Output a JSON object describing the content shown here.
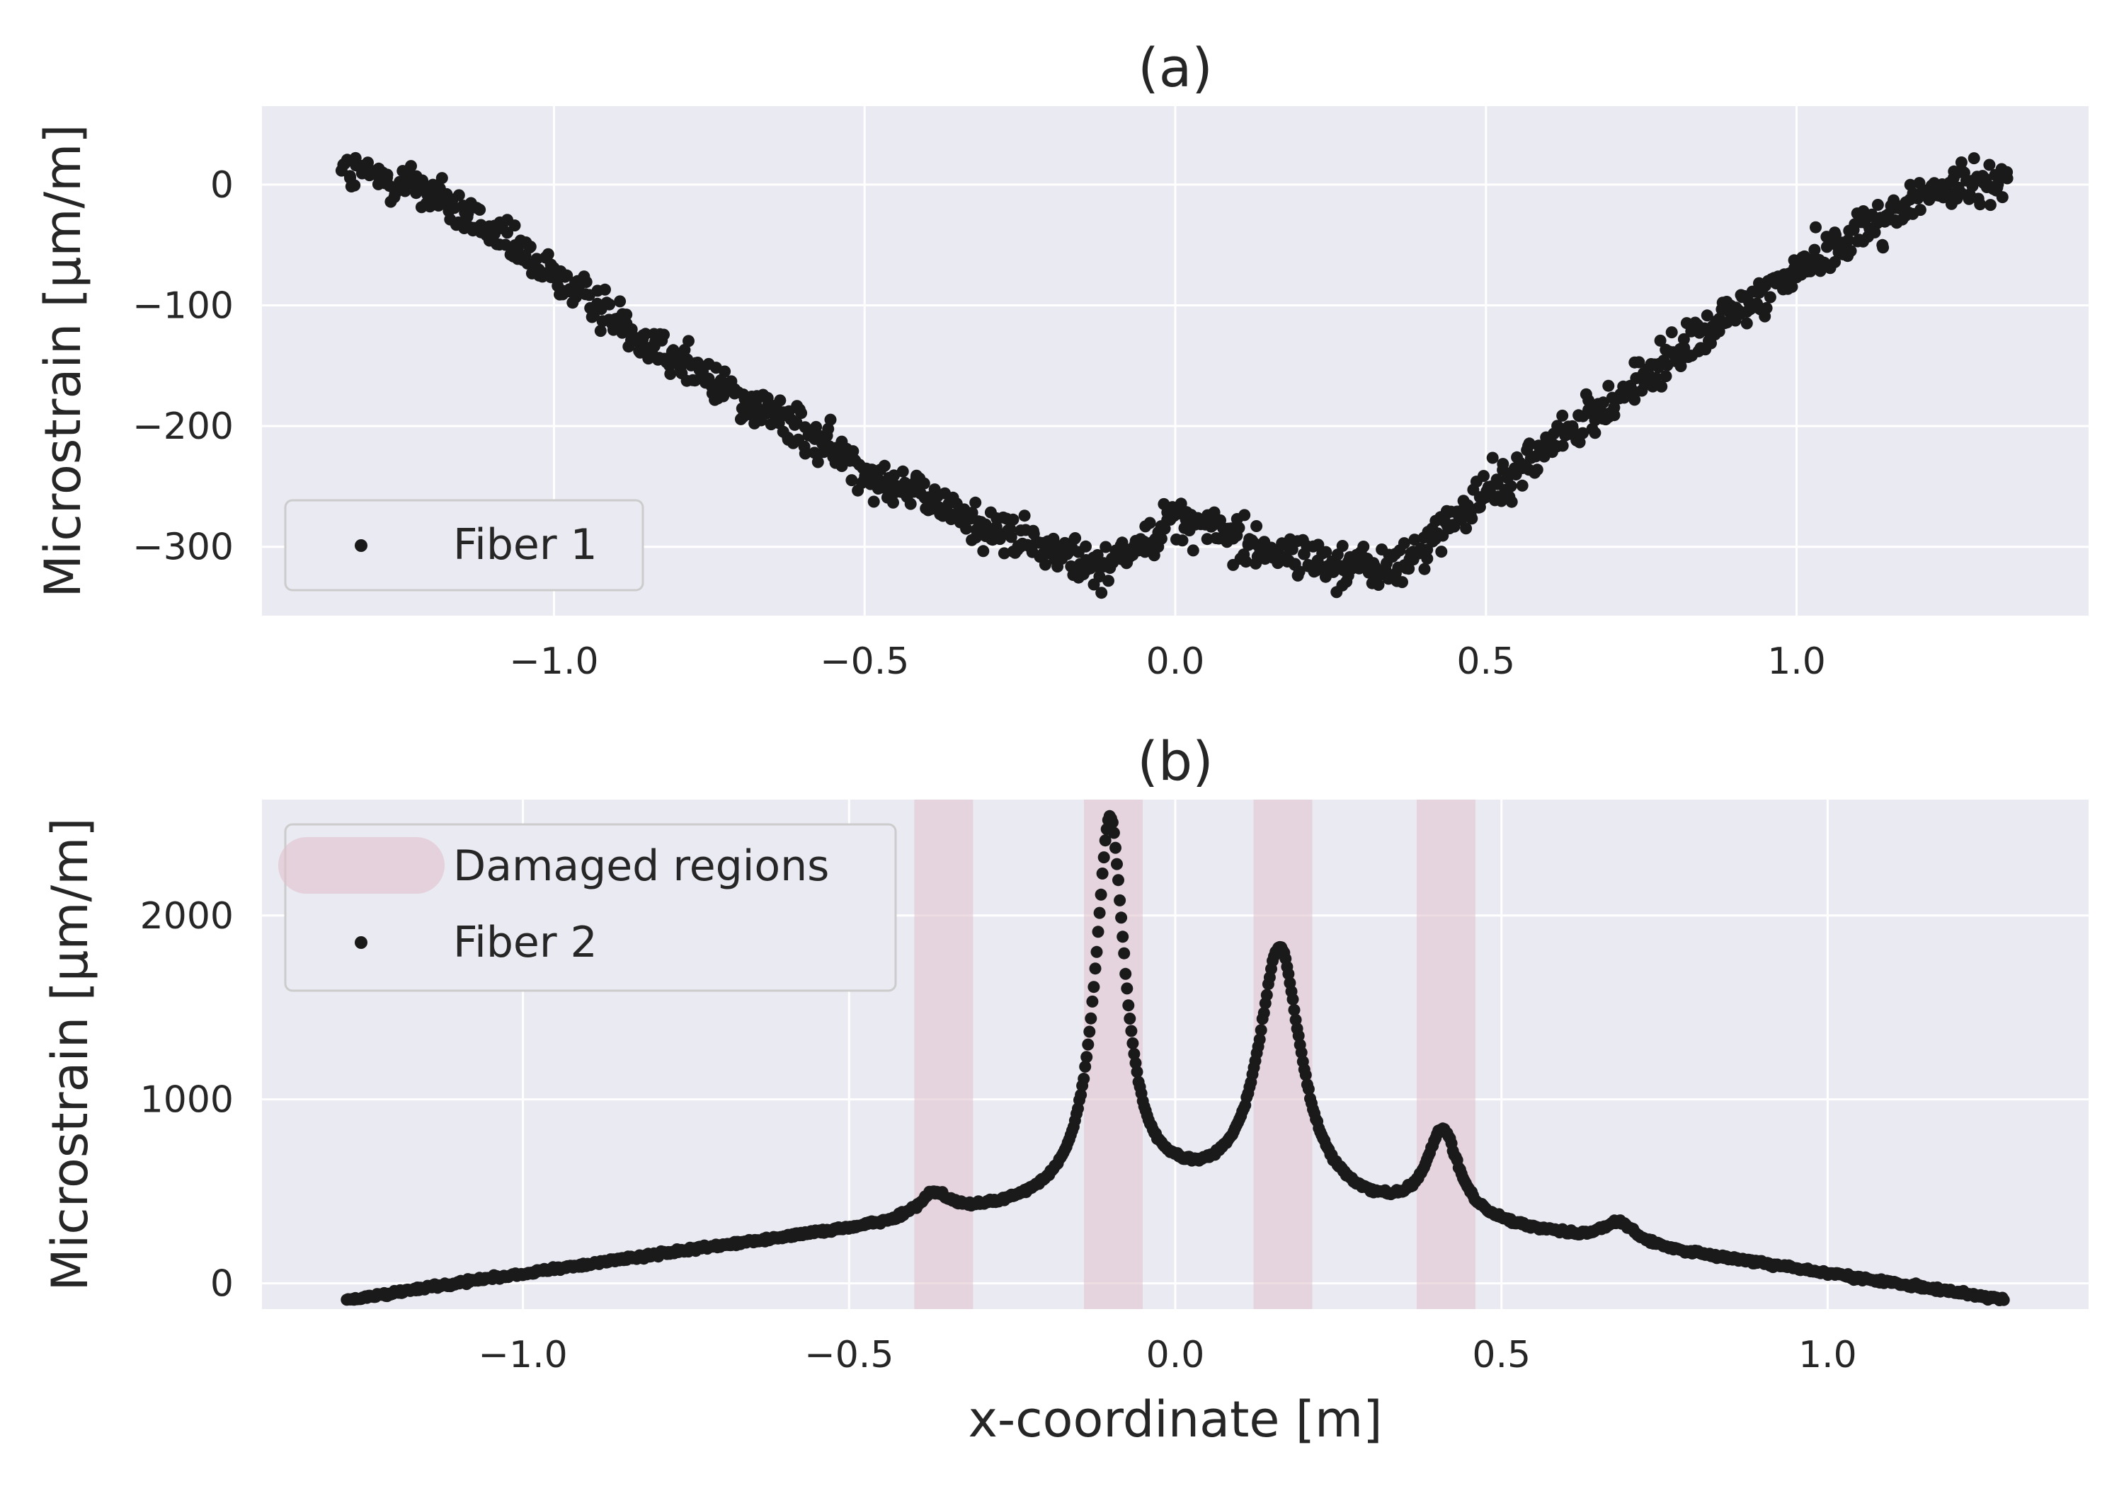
{
  "chart_data": [
    {
      "type": "scatter",
      "title": "(a)",
      "xlabel": "",
      "ylabel": "Microstrain [µm/m]",
      "xlim": [
        -1.47,
        1.47
      ],
      "ylim": [
        -357,
        65
      ],
      "xticks": [
        -1.0,
        -0.5,
        0.0,
        0.5,
        1.0
      ],
      "xtick_labels": [
        "−1.0",
        "−0.5",
        "0.0",
        "0.5",
        "1.0"
      ],
      "yticks": [
        0,
        -100,
        -200,
        -300
      ],
      "ytick_labels": [
        "0",
        "−100",
        "−200",
        "−300"
      ],
      "grid": true,
      "legend": {
        "placement": "lower-left",
        "entries": [
          {
            "label": "Fiber 1",
            "kind": "marker"
          }
        ]
      },
      "series": [
        {
          "name": "Fiber 1",
          "color": "#1a1a1a",
          "generator": "fiber1",
          "x_range": [
            -1.34,
            1.34
          ],
          "key_points": [
            {
              "x": -1.34,
              "y": 10
            },
            {
              "x": -1.22,
              "y": 0
            },
            {
              "x": -1.0,
              "y": -75
            },
            {
              "x": -0.8,
              "y": -145
            },
            {
              "x": -0.5,
              "y": -235
            },
            {
              "x": -0.3,
              "y": -285
            },
            {
              "x": -0.12,
              "y": -318
            },
            {
              "x": 0.0,
              "y": -275
            },
            {
              "x": 0.2,
              "y": -310
            },
            {
              "x": 0.35,
              "y": -320
            },
            {
              "x": 0.4,
              "y": -300
            },
            {
              "x": 0.5,
              "y": -255
            },
            {
              "x": 0.7,
              "y": -180
            },
            {
              "x": 1.0,
              "y": -70
            },
            {
              "x": 1.2,
              "y": -10
            },
            {
              "x": 1.34,
              "y": 8
            }
          ]
        }
      ]
    },
    {
      "type": "scatter",
      "title": "(b)",
      "xlabel": "x-coordinate [m]",
      "ylabel": "Microstrain [µm/m]",
      "xlim": [
        -1.4,
        1.4
      ],
      "ylim": [
        -140,
        2630
      ],
      "xticks": [
        -1.0,
        -0.5,
        0.0,
        0.5,
        1.0
      ],
      "xtick_labels": [
        "−1.0",
        "−0.5",
        "0.0",
        "0.5",
        "1.0"
      ],
      "yticks": [
        0,
        1000,
        2000
      ],
      "ytick_labels": [
        "0",
        "1000",
        "2000"
      ],
      "grid": true,
      "legend": {
        "placement": "upper-left",
        "entries": [
          {
            "label": "Damaged regions",
            "kind": "patch"
          },
          {
            "label": "Fiber 2",
            "kind": "marker"
          }
        ]
      },
      "damaged_regions": [
        {
          "x_start": -0.4,
          "x_end": -0.31
        },
        {
          "x_start": -0.14,
          "x_end": -0.05
        },
        {
          "x_start": 0.12,
          "x_end": 0.21
        },
        {
          "x_start": 0.37,
          "x_end": 0.46
        }
      ],
      "damaged_region_color": "#e0c0cc",
      "series": [
        {
          "name": "Fiber 2",
          "color": "#1a1a1a",
          "generator": "fiber2",
          "x_range": [
            -1.27,
            1.27
          ],
          "peaks": [
            {
              "x": -0.37,
              "y": 470
            },
            {
              "x": -0.1,
              "y": 2500
            },
            {
              "x": 0.16,
              "y": 1800
            },
            {
              "x": 0.41,
              "y": 800
            },
            {
              "x": 0.68,
              "y": 320
            }
          ]
        }
      ]
    }
  ]
}
